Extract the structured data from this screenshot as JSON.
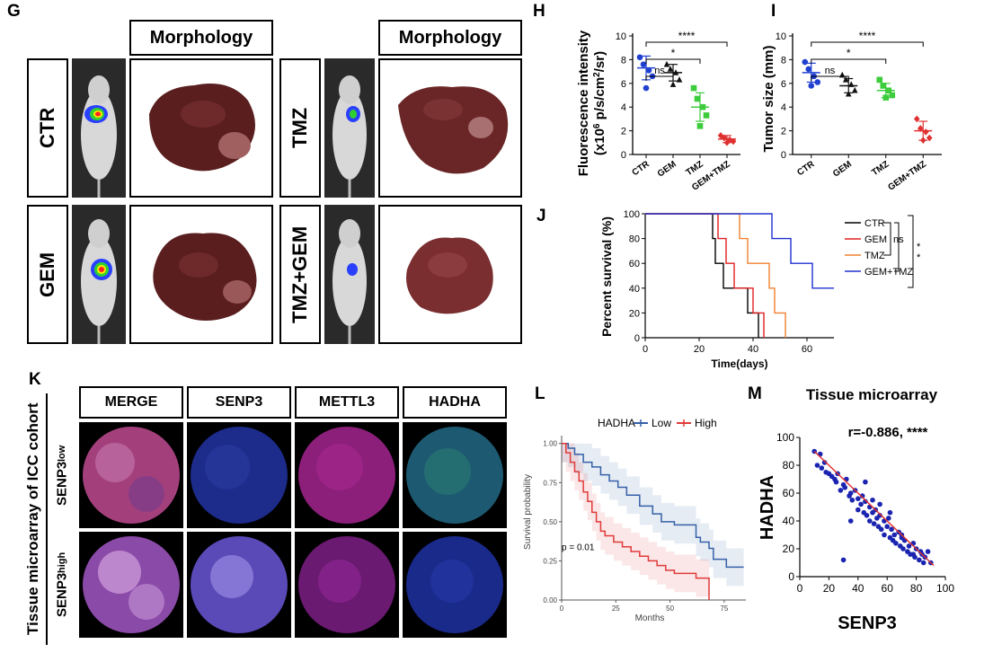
{
  "panels": {
    "G": "G",
    "H": "H",
    "I": "I",
    "J": "J",
    "K": "K",
    "L": "L",
    "M": "M"
  },
  "panel_g": {
    "morphology_left": "Morphology",
    "morphology_right": "Morphology",
    "groups": [
      "CTR",
      "GEM",
      "TMZ",
      "TMZ+GEM"
    ]
  },
  "panel_k": {
    "side_label": "Tissue microarray of ICC cohort",
    "columns": [
      "MERGE",
      "SENP3",
      "METTL3",
      "HADHA"
    ],
    "row_low_base": "SENP3",
    "row_low_sup": "low",
    "row_high_base": "SENP3",
    "row_high_sup": "high",
    "colors": {
      "merge": "#a3407c",
      "senp3": "#1d2b8a",
      "mettl3": "#8b1f7a",
      "hadha": "#1d5a72"
    }
  },
  "chart_data": [
    {
      "id": "H",
      "type": "scatter",
      "ylabel": "Fluorescence intensity",
      "ylabel_line2_pre": "(x10",
      "ylabel_line2_sup": "6",
      "ylabel_line2_mid": " p/s/cm",
      "ylabel_line2_sup2": "2",
      "ylabel_line2_post": "/sr)",
      "ylim": [
        0,
        10
      ],
      "yticks": [
        "0",
        "2",
        "4",
        "6",
        "8",
        "10"
      ],
      "categories": [
        "CTR",
        "GEM",
        "TMZ",
        "GEM+TMZ"
      ],
      "colors": [
        "#2040d0",
        "#111111",
        "#3ccc3c",
        "#e03030"
      ],
      "markers": [
        "circle",
        "triangle",
        "square",
        "diamond"
      ],
      "points": [
        [
          8.2,
          7.6,
          7.1,
          6.6,
          5.6
        ],
        [
          7.6,
          7.2,
          6.9,
          6.3,
          5.9
        ],
        [
          5.6,
          4.7,
          4.0,
          3.3,
          2.4
        ],
        [
          1.6,
          1.4,
          1.25,
          1.1,
          1.0
        ]
      ],
      "means": [
        7.3,
        6.9,
        4.0,
        1.3
      ],
      "sd": [
        1.0,
        0.7,
        1.2,
        0.3
      ],
      "significance": [
        {
          "from": 0,
          "to": 1,
          "label": "ns"
        },
        {
          "from": 0,
          "to": 2,
          "label": "*"
        },
        {
          "from": 0,
          "to": 3,
          "label": "****"
        }
      ]
    },
    {
      "id": "I",
      "type": "scatter",
      "ylabel": "Tumor size (mm)",
      "ylim": [
        0,
        10
      ],
      "yticks": [
        "0",
        "2",
        "4",
        "6",
        "8",
        "10"
      ],
      "categories": [
        "CTR",
        "GEM",
        "TMZ",
        "GEM+TMZ"
      ],
      "colors": [
        "#2040d0",
        "#111111",
        "#3ccc3c",
        "#e03030"
      ],
      "markers": [
        "circle",
        "triangle",
        "square",
        "diamond"
      ],
      "points": [
        [
          7.8,
          7.2,
          6.6,
          6.1,
          5.8
        ],
        [
          6.7,
          6.3,
          5.9,
          5.4,
          5.1
        ],
        [
          6.3,
          5.8,
          5.4,
          5.0,
          4.8
        ],
        [
          3.0,
          2.2,
          1.9,
          1.4,
          1.2
        ]
      ],
      "means": [
        6.9,
        5.8,
        5.4,
        2.0
      ],
      "sd": [
        0.8,
        0.6,
        0.6,
        0.8
      ],
      "significance": [
        {
          "from": 0,
          "to": 1,
          "label": "ns"
        },
        {
          "from": 0,
          "to": 2,
          "label": "*"
        },
        {
          "from": 0,
          "to": 3,
          "label": "****"
        }
      ]
    },
    {
      "id": "J",
      "type": "line",
      "xlabel": "Time(days)",
      "ylabel": "Percent survival (%)",
      "xlim": [
        0,
        70
      ],
      "ylim": [
        0,
        100
      ],
      "xticks": [
        "0",
        "20",
        "40",
        "60"
      ],
      "yticks": [
        "0",
        "20",
        "40",
        "60",
        "80",
        "100"
      ],
      "series": [
        {
          "name": "CTR",
          "color": "#000000",
          "x": [
            0,
            25,
            25,
            26,
            26,
            29,
            29,
            38,
            38,
            42,
            42
          ],
          "y": [
            100,
            100,
            80,
            80,
            60,
            60,
            40,
            40,
            20,
            20,
            0
          ]
        },
        {
          "name": "GEM",
          "color": "#e02020",
          "x": [
            0,
            27,
            27,
            30,
            30,
            33,
            33,
            40,
            40,
            44,
            44
          ],
          "y": [
            100,
            100,
            80,
            80,
            60,
            60,
            40,
            40,
            20,
            20,
            0
          ]
        },
        {
          "name": "TMZ",
          "color": "#f08030",
          "x": [
            0,
            35,
            35,
            38,
            38,
            46,
            46,
            48,
            48,
            52,
            52
          ],
          "y": [
            100,
            100,
            80,
            80,
            60,
            60,
            40,
            40,
            20,
            20,
            0
          ]
        },
        {
          "name": "GEM+TMZ",
          "color": "#2030d0",
          "x": [
            0,
            47,
            47,
            54,
            54,
            62,
            62,
            70
          ],
          "y": [
            100,
            100,
            80,
            80,
            60,
            60,
            40,
            40
          ]
        }
      ],
      "annotations": [
        "ns",
        "*",
        "*"
      ]
    },
    {
      "id": "L",
      "type": "line",
      "xlabel": "Months",
      "ylabel": "Survival probability",
      "legend_title": "HADHA",
      "xlim": [
        0,
        85
      ],
      "ylim": [
        0,
        1.05
      ],
      "xticks": [
        "0",
        "25",
        "50",
        "75"
      ],
      "yticks": [
        "0.00",
        "0.25",
        "0.50",
        "0.75",
        "1.00"
      ],
      "annotation": "p = 0.01",
      "series": [
        {
          "name": "Low",
          "color": "#3560a8",
          "x": [
            0,
            3,
            6,
            10,
            14,
            18,
            22,
            26,
            30,
            36,
            42,
            46,
            52,
            58,
            62,
            64,
            68,
            70,
            76,
            84
          ],
          "y": [
            1.0,
            0.97,
            0.93,
            0.88,
            0.85,
            0.8,
            0.76,
            0.72,
            0.67,
            0.6,
            0.55,
            0.5,
            0.48,
            0.48,
            0.4,
            0.37,
            0.33,
            0.26,
            0.21,
            0.21
          ]
        },
        {
          "name": "High",
          "color": "#e03a3a",
          "x": [
            0,
            2,
            4,
            6,
            8,
            10,
            12,
            14,
            16,
            18,
            20,
            24,
            28,
            32,
            36,
            40,
            44,
            48,
            52,
            58,
            62,
            66,
            68
          ],
          "y": [
            1.0,
            0.94,
            0.88,
            0.82,
            0.76,
            0.69,
            0.63,
            0.56,
            0.5,
            0.44,
            0.41,
            0.37,
            0.34,
            0.31,
            0.28,
            0.25,
            0.22,
            0.19,
            0.17,
            0.17,
            0.14,
            0.14,
            0.0
          ]
        }
      ]
    },
    {
      "id": "M",
      "type": "scatter",
      "title": "Tissue microarray",
      "annotation": "r=-0.886, ****",
      "xlabel": "SENP3",
      "ylabel": "HADHA",
      "xlim": [
        0,
        100
      ],
      "ylim": [
        0,
        100
      ],
      "xticks": [
        "0",
        "20",
        "40",
        "60",
        "80",
        "100"
      ],
      "yticks": [
        "0",
        "20",
        "40",
        "60",
        "80",
        "100"
      ],
      "color": "#1a24b0",
      "fit_color": "#e03030",
      "fit": [
        [
          10,
          90
        ],
        [
          92,
          8
        ]
      ],
      "x": [
        10,
        12,
        14,
        15,
        17,
        18,
        20,
        22,
        24,
        25,
        26,
        28,
        30,
        31,
        32,
        34,
        35,
        36,
        38,
        40,
        40,
        42,
        43,
        44,
        45,
        46,
        48,
        48,
        50,
        51,
        52,
        53,
        54,
        55,
        56,
        58,
        58,
        60,
        61,
        62,
        63,
        64,
        65,
        66,
        68,
        69,
        70,
        71,
        72,
        74,
        75,
        76,
        78,
        79,
        80,
        82,
        83,
        84,
        85,
        86,
        88,
        90,
        30,
        45,
        55,
        62,
        70,
        78,
        35,
        50
      ],
      "y": [
        90,
        80,
        88,
        78,
        82,
        75,
        74,
        72,
        70,
        68,
        74,
        62,
        66,
        64,
        70,
        58,
        60,
        55,
        62,
        56,
        48,
        52,
        58,
        46,
        54,
        44,
        50,
        40,
        46,
        38,
        48,
        42,
        36,
        44,
        34,
        40,
        30,
        36,
        42,
        28,
        34,
        26,
        30,
        24,
        32,
        22,
        28,
        20,
        26,
        18,
        22,
        16,
        24,
        14,
        20,
        12,
        18,
        16,
        10,
        14,
        18,
        10,
        12,
        68,
        52,
        46,
        30,
        16,
        40,
        55
      ]
    }
  ]
}
